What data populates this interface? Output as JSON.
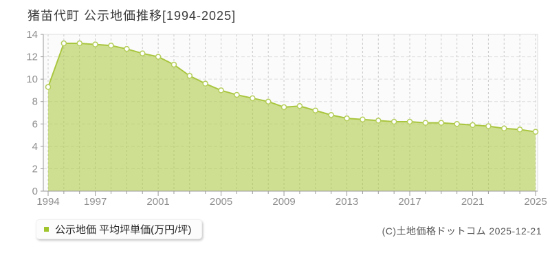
{
  "title": "猪苗代町 公示地価推移[1994-2025]",
  "legend": {
    "label": "公示地価 平均坪単価(万円/坪)",
    "marker_color": "#a0c52c"
  },
  "footer": {
    "copyright": "(C)土地価格ドットコム 2025-12-21"
  },
  "chart_data": {
    "type": "area",
    "title": "猪苗代町 公示地価推移[1994-2025]",
    "series_name": "公示地価 平均坪単価(万円/坪)",
    "unit": "万円/坪",
    "x": [
      1994,
      1995,
      1996,
      1997,
      1998,
      1999,
      2000,
      2001,
      2002,
      2003,
      2004,
      2005,
      2006,
      2007,
      2008,
      2009,
      2010,
      2011,
      2012,
      2013,
      2014,
      2015,
      2016,
      2017,
      2018,
      2019,
      2020,
      2021,
      2022,
      2023,
      2024,
      2025
    ],
    "values": [
      9.3,
      13.2,
      13.2,
      13.1,
      13.0,
      12.7,
      12.3,
      12.0,
      11.3,
      10.3,
      9.6,
      9.0,
      8.6,
      8.3,
      8.0,
      7.5,
      7.6,
      7.2,
      6.8,
      6.5,
      6.4,
      6.3,
      6.2,
      6.2,
      6.1,
      6.1,
      6.0,
      5.9,
      5.8,
      5.6,
      5.5,
      5.3
    ],
    "xlabel": "",
    "ylabel": "",
    "ylim": [
      0,
      14
    ],
    "y_ticks": [
      0,
      2,
      4,
      6,
      8,
      10,
      12,
      14
    ],
    "x_tick_labels": [
      "1994",
      "1997",
      "2001",
      "2005",
      "2009",
      "2013",
      "2017",
      "2021",
      "2025"
    ],
    "grid": true,
    "marker": "circle",
    "legend_position": "bottom-left",
    "colors": {
      "plot_bg": "#fbfbfb",
      "grid_vertical": "#c8c8c8",
      "grid_horizontal": "#dcdcdc",
      "area_fill": "rgba(171,200,60,0.55)",
      "line": "#a9c63f",
      "marker_fill": "#ffffff",
      "marker_stroke": "#b4ce5a",
      "plot_border": "#dddddd",
      "axis_line": "#9a9a9a",
      "axis_label": "#8d8d8d"
    }
  }
}
